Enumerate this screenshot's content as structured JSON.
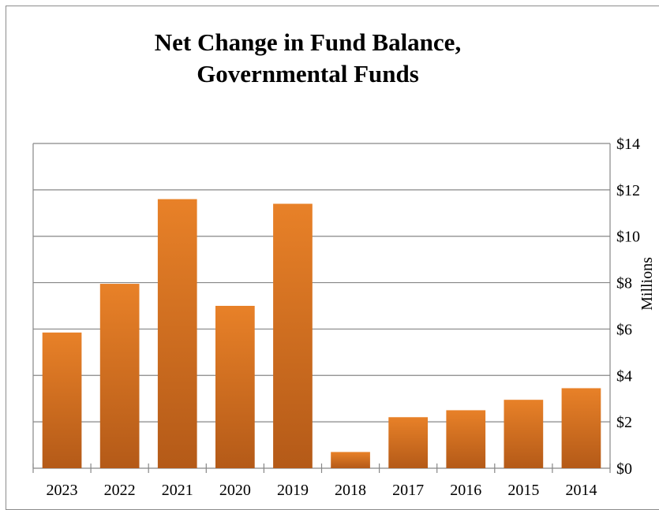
{
  "chart_data": {
    "type": "bar",
    "title_line1": "Net Change in Fund Balance,",
    "title_line2": "Governmental Funds",
    "ylabel": "Millions",
    "categories": [
      "2023",
      "2022",
      "2021",
      "2020",
      "2019",
      "2018",
      "2017",
      "2016",
      "2015",
      "2014"
    ],
    "series": [
      {
        "values": [
          5.85,
          7.95,
          11.6,
          7.0,
          11.4,
          0.7,
          2.2,
          2.5,
          2.95,
          3.45
        ]
      }
    ],
    "ylim": [
      0,
      14
    ],
    "yticks": [
      0,
      2,
      4,
      6,
      8,
      10,
      12,
      14
    ],
    "ytick_labels": [
      "$0",
      "$2",
      "$4",
      "$6",
      "$8",
      "$10",
      "$12",
      "$14"
    ],
    "y_axis_position": "right",
    "grid": true,
    "legend": "none",
    "colors": {
      "bar_light": "#e88128",
      "bar_dark": "#b45a18",
      "grid": "#878787"
    }
  }
}
